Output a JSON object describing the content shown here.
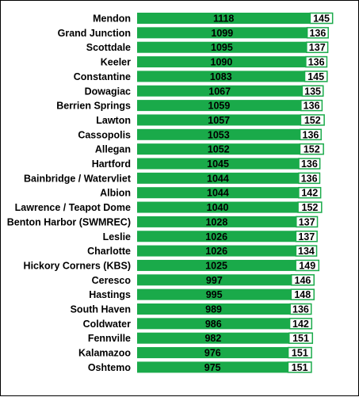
{
  "chart_data": {
    "type": "bar",
    "orientation": "horizontal",
    "title": "",
    "xlabel": "",
    "ylabel": "",
    "grid": false,
    "legend": "none",
    "colors": {
      "bar_fill": "#1aaa4a",
      "box_fill": "#ffffff",
      "box_border": "#1aaa4a",
      "text": "#000000",
      "frame": "#000000"
    },
    "categories": [
      "Mendon",
      "Grand Junction",
      "Scottdale",
      "Keeler",
      "Constantine",
      "Dowagiac",
      "Berrien Springs",
      "Lawton",
      "Cassopolis",
      "Allegan",
      "Hartford",
      "Bainbridge / Watervliet",
      "Albion",
      "Lawrence / Teapot Dome",
      "Benton Harbor (SWMREC)",
      "Leslie",
      "Charlotte",
      "Hickory Corners (KBS)",
      "Ceresco",
      "Hastings",
      "South Haven",
      "Coldwater",
      "Fennville",
      "Kalamazoo",
      "Oshtemo"
    ],
    "series": [
      {
        "values": [
          1118,
          1099,
          1095,
          1090,
          1083,
          1067,
          1059,
          1057,
          1053,
          1052,
          1045,
          1044,
          1044,
          1040,
          1028,
          1026,
          1026,
          1025,
          997,
          995,
          989,
          986,
          982,
          976,
          975
        ]
      },
      {
        "values": [
          145,
          136,
          137,
          136,
          145,
          135,
          136,
          152,
          136,
          152,
          136,
          136,
          142,
          152,
          137,
          137,
          134,
          149,
          146,
          148,
          136,
          142,
          151,
          151,
          151
        ]
      }
    ]
  }
}
